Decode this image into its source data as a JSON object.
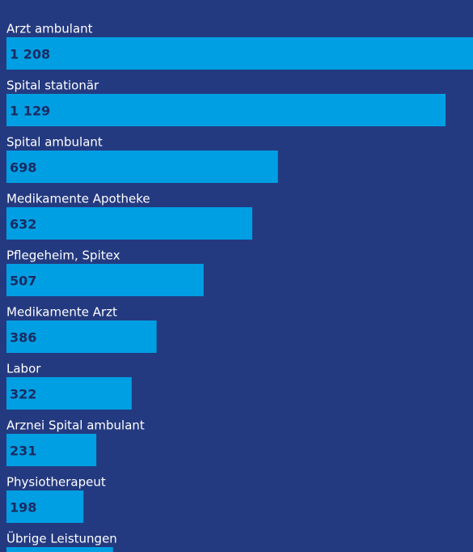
{
  "chart_data": {
    "type": "bar",
    "orientation": "horizontal",
    "categories": [
      "Arzt ambulant",
      "Spital stationär",
      "Spital ambulant",
      "Medikamente Apotheke",
      "Pflegeheim, Spitex",
      "Medikamente Arzt",
      "Labor",
      "Arznei Spital ambulant",
      "Physiotherapeut",
      "Übrige Leistungen"
    ],
    "values": [
      1208,
      1129,
      698,
      632,
      507,
      386,
      322,
      231,
      198,
      274
    ],
    "value_labels": [
      "1 208",
      "1 129",
      "698",
      "632",
      "507",
      "386",
      "322",
      "231",
      "198",
      null
    ],
    "color": "#009fe3"
  }
}
